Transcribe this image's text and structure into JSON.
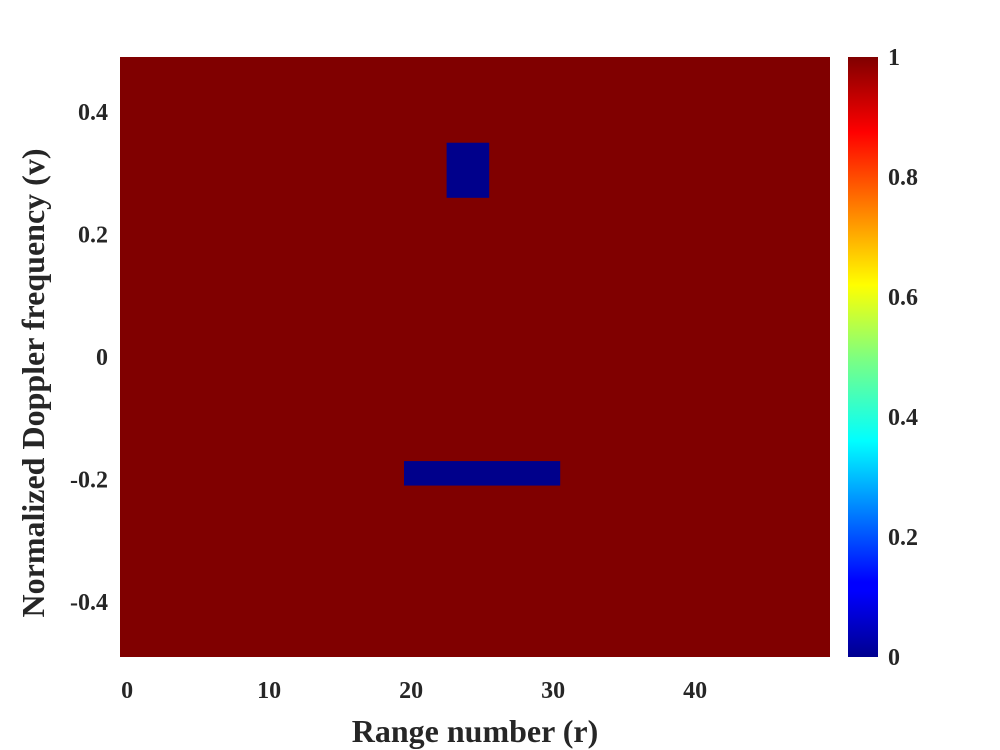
{
  "chart_data": {
    "type": "heatmap",
    "title": "",
    "xlabel": "Range number (r)",
    "ylabel": "Normalized Doppler frequency (v)",
    "xlim": [
      -0.5,
      49.5
    ],
    "ylim": [
      -0.49,
      0.49
    ],
    "x_ticks": [
      0,
      10,
      20,
      30,
      40
    ],
    "x_tick_labels": [
      "0",
      "10",
      "20",
      "30",
      "40"
    ],
    "y_ticks": [
      0.4,
      0.2,
      0,
      -0.2,
      -0.4
    ],
    "y_tick_labels": [
      "0.4",
      "0.2",
      "0",
      "-0.2",
      "-0.4"
    ],
    "background_value": 1,
    "regions": [
      {
        "x_start": 23,
        "x_end": 25,
        "y_start": 0.26,
        "y_end": 0.35,
        "value": 0
      },
      {
        "x_start": 20,
        "x_end": 30,
        "y_start": -0.21,
        "y_end": -0.17,
        "value": 0
      }
    ],
    "colorbar": {
      "colormap": "jet",
      "range": [
        0,
        1
      ],
      "ticks": [
        0,
        0.2,
        0.4,
        0.6,
        0.8,
        1
      ],
      "tick_labels": [
        "0",
        "0.2",
        "0.4",
        "0.6",
        "0.8",
        "1"
      ]
    },
    "colors": {
      "high": "#800000",
      "low": "#00008b",
      "text": "#262626"
    }
  }
}
